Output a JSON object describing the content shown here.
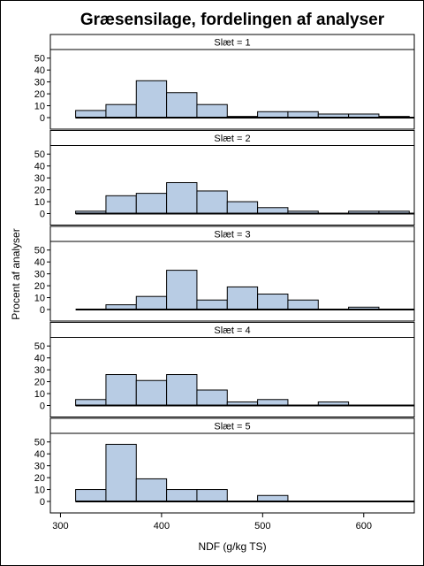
{
  "chart_data": {
    "type": "bar",
    "title": "Græsensilage, fordelingen af analyser",
    "xlabel": "NDF (g/kg TS)",
    "ylabel": "Procent af analyser",
    "xlim": [
      290,
      650
    ],
    "ylim": [
      0,
      55
    ],
    "x_ticks": [
      300,
      400,
      500,
      600
    ],
    "y_ticks": [
      0,
      10,
      20,
      30,
      40,
      50
    ],
    "bin_width": 30,
    "bin_lefts": [
      315,
      345,
      375,
      405,
      435,
      465,
      495,
      525,
      555,
      585,
      615
    ],
    "colors": {
      "bar_fill": "#b8cce4",
      "bar_edge": "#000000",
      "background": "#ffffff"
    },
    "grid": false,
    "panels": [
      {
        "label": "Slæt = 1",
        "values": [
          6,
          11,
          31,
          21,
          11,
          1,
          5,
          5,
          3,
          3,
          1
        ]
      },
      {
        "label": "Slæt = 2",
        "values": [
          2,
          15,
          17,
          26,
          19,
          10,
          5,
          2,
          0,
          2,
          2
        ]
      },
      {
        "label": "Slæt = 3",
        "values": [
          0,
          4,
          11,
          33,
          8,
          19,
          13,
          8,
          0,
          2,
          0
        ]
      },
      {
        "label": "Slæt = 4",
        "values": [
          5,
          26,
          21,
          26,
          13,
          3,
          5,
          0,
          3,
          0,
          0
        ]
      },
      {
        "label": "Slæt = 5",
        "values": [
          10,
          48,
          19,
          10,
          10,
          0,
          5,
          0,
          0,
          0,
          0
        ]
      }
    ]
  }
}
